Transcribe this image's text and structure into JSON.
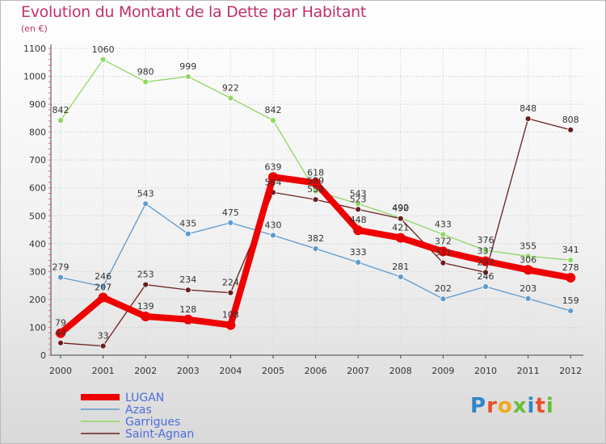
{
  "header": {
    "title": "Evolution du Montant de la Dette par Habitant",
    "subtitle": "(en €)"
  },
  "logo": {
    "text": "Proxiti"
  },
  "chart_data": {
    "type": "line",
    "title": "Evolution du Montant de la Dette par Habitant",
    "subtitle": "(en €)",
    "xlabel": "",
    "ylabel": "",
    "ylim": [
      0,
      1100
    ],
    "yticks": [
      0,
      100,
      200,
      300,
      400,
      500,
      600,
      700,
      800,
      900,
      1000,
      1100
    ],
    "x": [
      "2000",
      "2001",
      "2002",
      "2003",
      "2004",
      "2005",
      "2006",
      "2007",
      "2008",
      "2009",
      "2010",
      "2011",
      "2012"
    ],
    "grid": true,
    "legend_position": "bottom-left",
    "series": [
      {
        "name": "LUGAN",
        "color": "#ee0000",
        "values": [
          79,
          207,
          139,
          128,
          108,
          639,
          618,
          448,
          421,
          372,
          337,
          306,
          278
        ]
      },
      {
        "name": "Azas",
        "color": "#5b9bd0",
        "values": [
          279,
          246,
          543,
          435,
          475,
          430,
          382,
          333,
          281,
          202,
          246,
          203,
          159
        ]
      },
      {
        "name": "Garrigues",
        "color": "#8fd862",
        "values": [
          842,
          1060,
          980,
          999,
          922,
          842,
          589,
          543,
          492,
          433,
          376,
          355,
          341
        ]
      },
      {
        "name": "Saint-Agnan",
        "color": "#6b1d1d",
        "values": [
          44,
          33,
          253,
          234,
          224,
          584,
          558,
          523,
          490,
          331,
          297,
          848,
          808
        ]
      }
    ]
  }
}
